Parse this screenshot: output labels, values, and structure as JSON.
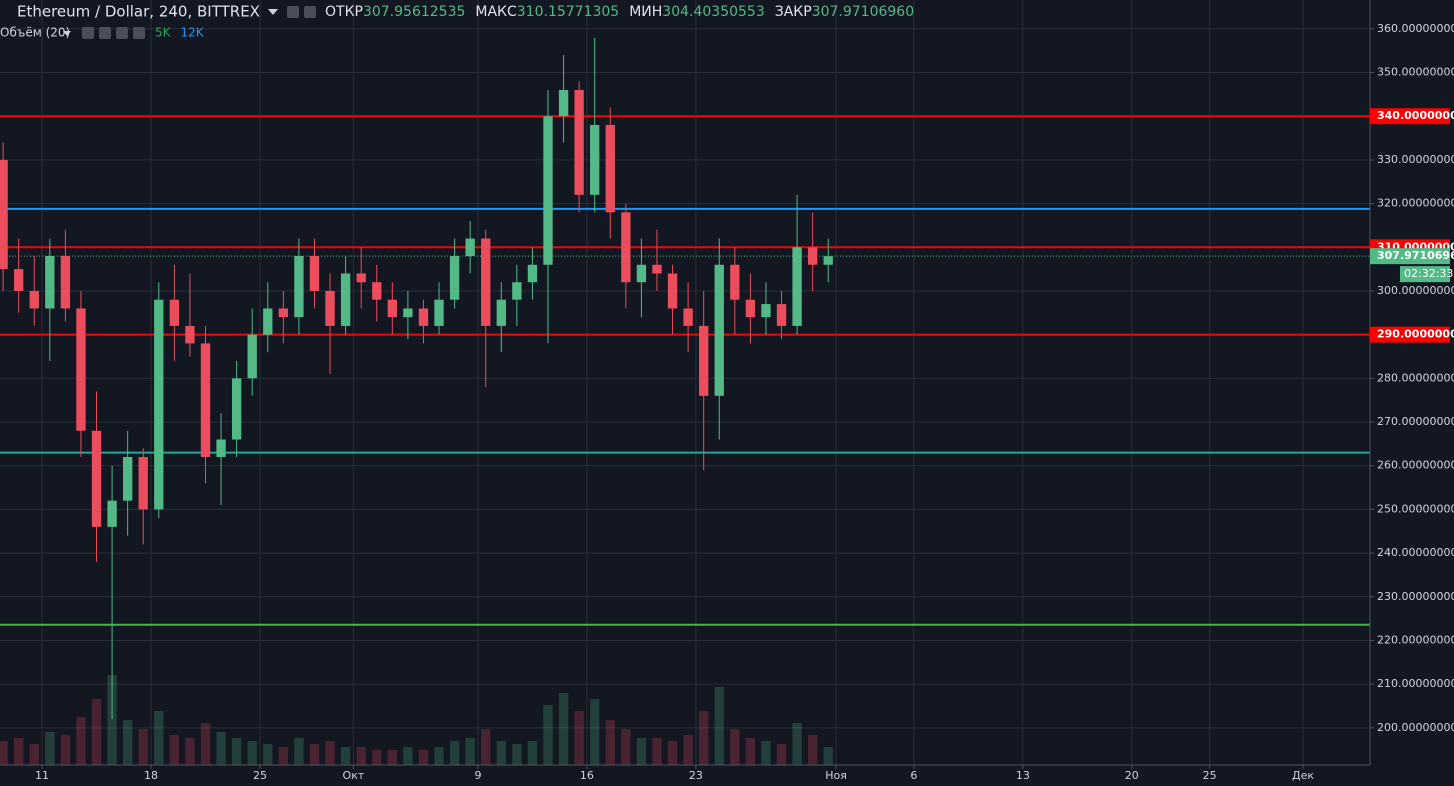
{
  "chart_data": {
    "type": "candlestick",
    "title": "Ethereum / Dollar, 240, BITTREX",
    "legend": [
      {
        "label": "ОТКР",
        "value": "307.95612535"
      },
      {
        "label": "МАКС",
        "value": "310.15771305"
      },
      {
        "label": "МИН",
        "value": "304.40350553"
      },
      {
        "label": "ЗАКР",
        "value": "307.97106960"
      }
    ],
    "indicator": {
      "label": "Объём (20)",
      "values": [
        "5K",
        "12K"
      ],
      "colors": [
        "#26a65b",
        "#2196f3"
      ]
    },
    "up_color": "#53b987",
    "down_color": "#eb4d5c",
    "grid": true,
    "x": [
      8.5,
      9.5,
      10.5,
      11.5,
      12.5,
      13.5,
      14.5,
      15.5,
      16.5,
      17.5,
      18.5,
      19.5,
      20.5,
      21.5,
      22.5,
      23.5,
      24.5,
      25.5,
      26.5,
      27.5,
      28.5,
      29.5,
      30.5,
      31.5,
      32.5,
      33.5,
      34.5,
      35.5,
      36.5,
      37.5,
      38.5,
      39.5,
      40.5,
      41.5,
      42.5,
      43.5,
      44.5,
      45.5,
      46.5,
      47.5,
      48.5,
      49.5,
      50.5,
      51.5,
      52.5,
      53.5,
      54.5,
      55.5,
      56.5,
      57.5,
      58.5,
      59.5,
      60.5,
      61.5
    ],
    "open": [
      330,
      305,
      300,
      296,
      308,
      296,
      268,
      246,
      252,
      262,
      250,
      298,
      292,
      288,
      262,
      266,
      280,
      290,
      296,
      294,
      308,
      300,
      292,
      304,
      302,
      298,
      294,
      296,
      292,
      298,
      308,
      312,
      292,
      298,
      302,
      306,
      340,
      346,
      322,
      338,
      318,
      302,
      306,
      304,
      296,
      292,
      276,
      306,
      298,
      294,
      297,
      292,
      310,
      306
    ],
    "high": [
      334,
      312,
      308,
      312,
      314,
      300,
      277,
      260,
      268,
      264,
      302,
      306,
      304,
      292,
      272,
      284,
      296,
      302,
      300,
      312,
      312,
      304,
      308,
      310,
      306,
      302,
      300,
      298,
      302,
      312,
      316,
      314,
      302,
      306,
      310,
      346,
      354,
      348,
      358,
      342,
      320,
      312,
      314,
      306,
      302,
      300,
      312,
      310,
      304,
      302,
      300,
      322,
      318,
      312
    ],
    "low": [
      300,
      295,
      292,
      284,
      293,
      262,
      238,
      202,
      244,
      242,
      248,
      284,
      285,
      256,
      251,
      262,
      276,
      286,
      288,
      290,
      296,
      281,
      290,
      296,
      293,
      290,
      289,
      288,
      290,
      296,
      304,
      278,
      286,
      292,
      298,
      288,
      334,
      318,
      318,
      312,
      296,
      294,
      300,
      290,
      286,
      259,
      266,
      290,
      288,
      290,
      289,
      290,
      300,
      302
    ],
    "close": [
      305,
      300,
      296,
      308,
      296,
      268,
      246,
      252,
      262,
      250,
      298,
      292,
      288,
      262,
      266,
      280,
      290,
      296,
      294,
      308,
      300,
      292,
      304,
      302,
      298,
      294,
      296,
      292,
      298,
      308,
      312,
      292,
      298,
      302,
      306,
      340,
      346,
      322,
      338,
      318,
      302,
      306,
      304,
      296,
      292,
      276,
      306,
      298,
      294,
      297,
      292,
      310,
      306,
      307.97
    ],
    "volume": [
      8000,
      9000,
      7000,
      11000,
      10000,
      16000,
      22000,
      30000,
      15000,
      12000,
      18000,
      10000,
      9000,
      14000,
      11000,
      9000,
      8000,
      7000,
      6000,
      9000,
      7000,
      8000,
      6000,
      6000,
      5000,
      5000,
      6000,
      5000,
      6000,
      8000,
      9000,
      12000,
      8000,
      7000,
      8000,
      20000,
      24000,
      18000,
      22000,
      15000,
      12000,
      9000,
      9000,
      8000,
      10000,
      18000,
      26000,
      12000,
      9000,
      8000,
      7000,
      14000,
      10000,
      6000
    ],
    "volume_lim": [
      0,
      40000
    ],
    "xlim": [
      8.3,
      96.3
    ],
    "xticks": [
      {
        "value": 11,
        "label": "11"
      },
      {
        "value": 18,
        "label": "18"
      },
      {
        "value": 25,
        "label": "25"
      },
      {
        "value": 31,
        "label": "Окт"
      },
      {
        "value": 39,
        "label": "9"
      },
      {
        "value": 46,
        "label": "16"
      },
      {
        "value": 53,
        "label": "23"
      },
      {
        "value": 62,
        "label": "Ноя"
      },
      {
        "value": 67,
        "label": "6"
      },
      {
        "value": 74,
        "label": "13"
      },
      {
        "value": 81,
        "label": "20"
      },
      {
        "value": 86,
        "label": "25"
      },
      {
        "value": 92,
        "label": "Дек"
      }
    ],
    "ylim": [
      191.5,
      366.6
    ],
    "yticks": [
      {
        "value": 200,
        "label": "200.00000000"
      },
      {
        "value": 210,
        "label": "210.00000000"
      },
      {
        "value": 220,
        "label": "220.00000000"
      },
      {
        "value": 230,
        "label": "230.00000000"
      },
      {
        "value": 240,
        "label": "240.00000000"
      },
      {
        "value": 250,
        "label": "250.00000000"
      },
      {
        "value": 260,
        "label": "260.00000000"
      },
      {
        "value": 270,
        "label": "270.00000000"
      },
      {
        "value": 280,
        "label": "280.00000000"
      },
      {
        "value": 290,
        "label": "290.00000000"
      },
      {
        "value": 300,
        "label": "300.00000000"
      },
      {
        "value": 310,
        "label": "310.00000000"
      },
      {
        "value": 320,
        "label": "320.00000000"
      },
      {
        "value": 330,
        "label": "330.00000000"
      },
      {
        "value": 340,
        "label": "340.00000000"
      },
      {
        "value": 350,
        "label": "350.00000000"
      },
      {
        "value": 360,
        "label": "360.00000000"
      }
    ],
    "levels": [
      {
        "value": 340,
        "color": "#ff0000",
        "label": "340.00000000"
      },
      {
        "value": 318.8,
        "color": "#2196f3"
      },
      {
        "value": 310,
        "color": "#ff0000",
        "label": "310.00000000"
      },
      {
        "value": 290,
        "color": "#ff0000",
        "label": "290.00000000"
      },
      {
        "value": 263,
        "color": "#26a69a"
      },
      {
        "value": 223.6,
        "color": "#4caf50"
      }
    ],
    "last_price": {
      "value": 307.9710696,
      "label": "307.97106960",
      "countdown": "02:32:33",
      "color": "#53b987"
    }
  }
}
